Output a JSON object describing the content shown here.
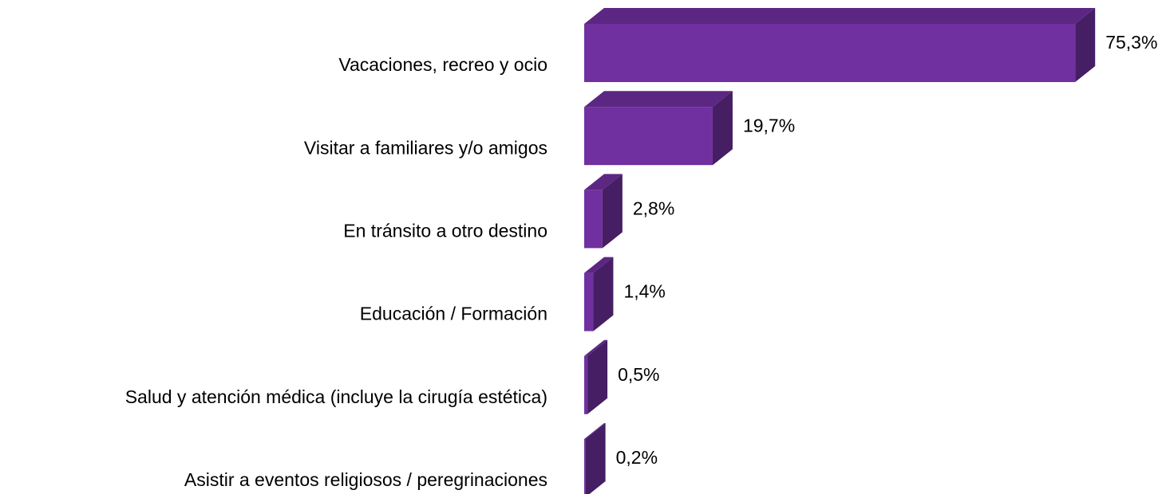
{
  "chart_data": {
    "type": "bar3d",
    "categories": [
      "Vacaciones, recreo y ocio",
      "Visitar a familiares y/o amigos",
      "En tránsito a otro destino",
      "Educación / Formación",
      "Salud y atención médica (incluye la cirugía estética)",
      "Asistir a eventos religiosos / peregrinaciones"
    ],
    "values": [
      75.3,
      19.7,
      2.8,
      1.4,
      0.5,
      0.2
    ],
    "value_labels": [
      "75,3%",
      "19,7%",
      "2,8%",
      "1,4%",
      "0,5%",
      "0,2%"
    ],
    "color": "#7030a0"
  }
}
